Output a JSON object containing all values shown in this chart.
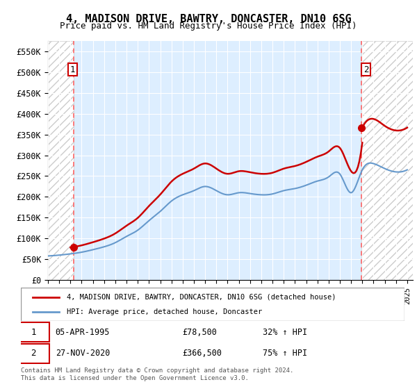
{
  "title": "4, MADISON DRIVE, BAWTRY, DONCASTER, DN10 6SG",
  "subtitle": "Price paid vs. HM Land Registry's House Price Index (HPI)",
  "ylabel": "",
  "xlim_start": 1993.0,
  "xlim_end": 2025.5,
  "ylim": [
    0,
    575000
  ],
  "yticks": [
    0,
    50000,
    100000,
    150000,
    200000,
    250000,
    300000,
    350000,
    400000,
    450000,
    500000,
    550000
  ],
  "ytick_labels": [
    "£0",
    "£50K",
    "£100K",
    "£150K",
    "£200K",
    "£250K",
    "£300K",
    "£350K",
    "£400K",
    "£450K",
    "£500K",
    "£550K"
  ],
  "xticks": [
    1993,
    1994,
    1995,
    1996,
    1997,
    1998,
    1999,
    2000,
    2001,
    2002,
    2003,
    2004,
    2005,
    2006,
    2007,
    2008,
    2009,
    2010,
    2011,
    2012,
    2013,
    2014,
    2015,
    2016,
    2017,
    2018,
    2019,
    2020,
    2021,
    2022,
    2023,
    2024,
    2025
  ],
  "sale1_x": 1995.26,
  "sale1_y": 78500,
  "sale1_label": "1",
  "sale1_date": "05-APR-1995",
  "sale1_price": "£78,500",
  "sale1_hpi": "32% ↑ HPI",
  "sale2_x": 2020.9,
  "sale2_y": 366500,
  "sale2_label": "2",
  "sale2_date": "27-NOV-2020",
  "sale2_price": "£366,500",
  "sale2_hpi": "75% ↑ HPI",
  "property_line_color": "#cc0000",
  "hpi_line_color": "#6699cc",
  "dashed_line_color": "#ff6666",
  "legend_label1": "4, MADISON DRIVE, BAWTRY, DONCASTER, DN10 6SG (detached house)",
  "legend_label2": "HPI: Average price, detached house, Doncaster",
  "footer": "Contains HM Land Registry data © Crown copyright and database right 2024.\nThis data is licensed under the Open Government Licence v3.0.",
  "hatch_color": "#cccccc",
  "bg_color": "#ddeeff",
  "hatch_bg_color": "#e8e8e8"
}
